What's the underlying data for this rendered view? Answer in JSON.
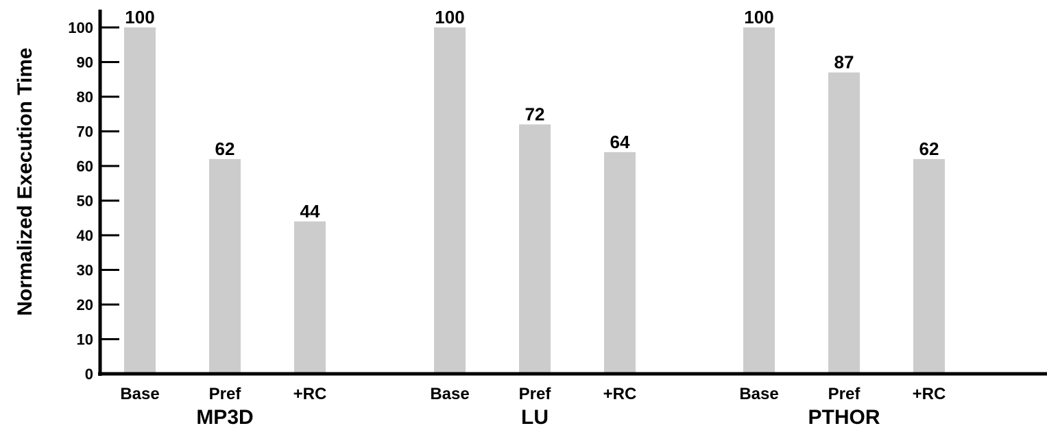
{
  "chart_data": {
    "type": "bar",
    "ylabel": "Normalized Execution Time",
    "ylim": [
      0,
      100
    ],
    "yticks": [
      0,
      10,
      20,
      30,
      40,
      50,
      60,
      70,
      80,
      90,
      100
    ],
    "grid": false,
    "bar_color": "#cccccc",
    "groups": [
      {
        "name": "MP3D",
        "bars": [
          {
            "label": "Base",
            "value": 100,
            "value_label": "100"
          },
          {
            "label": "Pref",
            "value": 62,
            "value_label": "62"
          },
          {
            "label": "+RC",
            "value": 44,
            "value_label": "44"
          }
        ]
      },
      {
        "name": "LU",
        "bars": [
          {
            "label": "Base",
            "value": 100,
            "value_label": "100"
          },
          {
            "label": "Pref",
            "value": 72,
            "value_label": "72"
          },
          {
            "label": "+RC",
            "value": 64,
            "value_label": "64"
          }
        ]
      },
      {
        "name": "PTHOR",
        "bars": [
          {
            "label": "Base",
            "value": 100,
            "value_label": "100"
          },
          {
            "label": "Pref",
            "value": 87,
            "value_label": "87"
          },
          {
            "label": "+RC",
            "value": 62,
            "value_label": "62"
          }
        ]
      }
    ]
  }
}
